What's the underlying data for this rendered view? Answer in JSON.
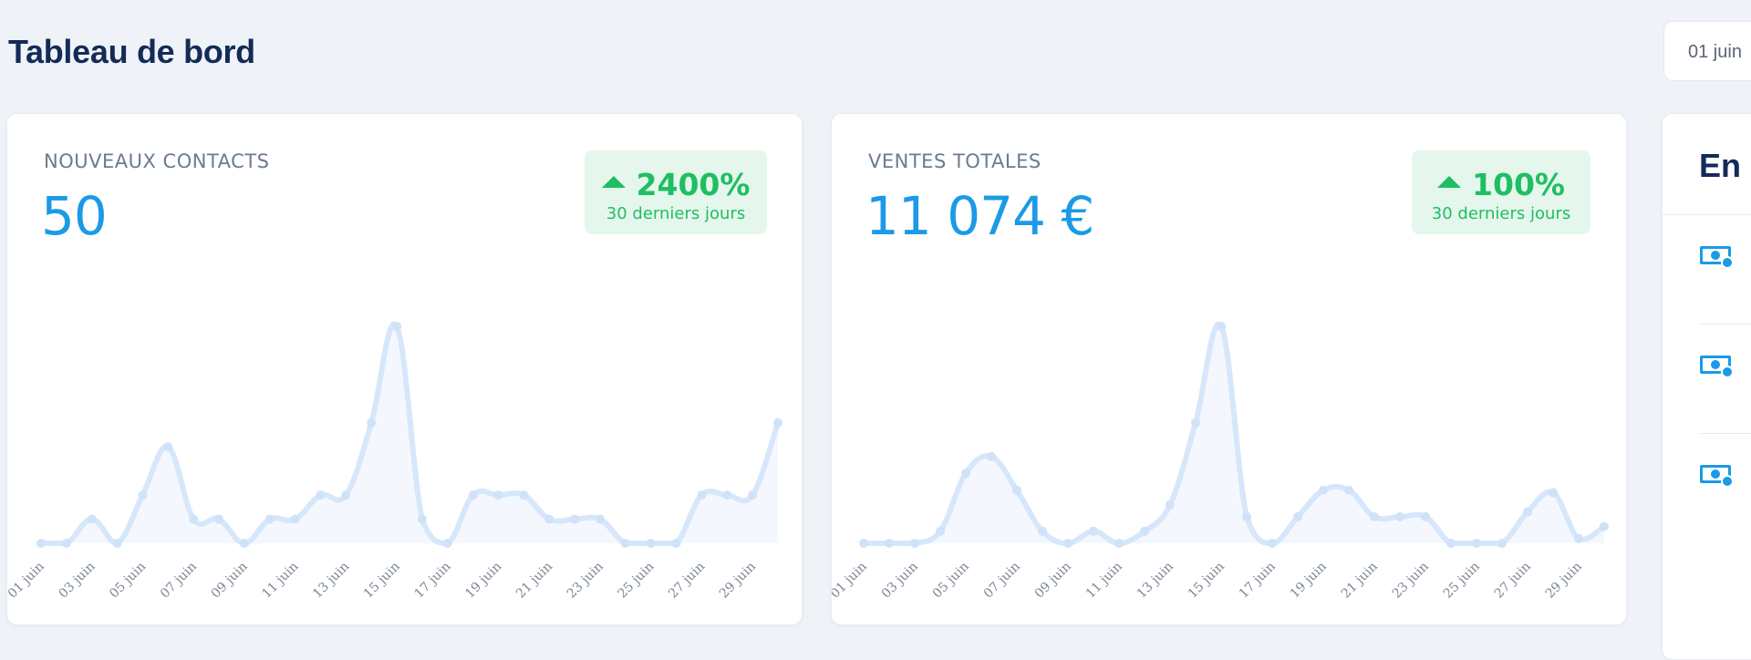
{
  "header": {
    "title": "Tableau de bord",
    "date_range": "01 juin"
  },
  "cards": [
    {
      "label": "NOUVEAUX CONTACTS",
      "value": "50",
      "trend": {
        "value": "2400%",
        "period": "30 derniers jours"
      }
    },
    {
      "label": "VENTES TOTALES",
      "value": "11 074 €",
      "trend": {
        "value": "100%",
        "period": "30 derniers jours"
      }
    }
  ],
  "activity": {
    "title": "En c",
    "items": [
      {
        "icon": "money-icon"
      },
      {
        "icon": "money-icon"
      },
      {
        "icon": "money-icon"
      }
    ]
  },
  "colors": {
    "accent": "#1b9ae6",
    "title": "#142b57",
    "trend_up": "#1fbe62",
    "trend_bg": "#e5f7ec",
    "line": "#d6e7fb",
    "area": "#f4f8fe"
  },
  "chart_data": [
    {
      "type": "area",
      "categories": [
        "01 juin",
        "02 juin",
        "03 juin",
        "04 juin",
        "05 juin",
        "06 juin",
        "07 juin",
        "08 juin",
        "09 juin",
        "10 juin",
        "11 juin",
        "12 juin",
        "13 juin",
        "14 juin",
        "15 juin",
        "16 juin",
        "17 juin",
        "18 juin",
        "19 juin",
        "20 juin",
        "21 juin",
        "22 juin",
        "23 juin",
        "24 juin",
        "25 juin",
        "26 juin",
        "27 juin",
        "28 juin",
        "29 juin",
        "30 juin"
      ],
      "tick_labels": [
        "01 juin",
        "03 juin",
        "05 juin",
        "07 juin",
        "09 juin",
        "11 juin",
        "13 juin",
        "15 juin",
        "17 juin",
        "19 juin",
        "21 juin",
        "23 juin",
        "25 juin",
        "27 juin",
        "29 juin"
      ],
      "values": [
        0,
        0,
        1,
        0,
        2,
        4,
        1,
        1,
        0,
        1,
        1,
        2,
        2,
        5,
        9,
        1,
        0,
        2,
        2,
        2,
        1,
        1,
        1,
        0,
        0,
        0,
        2,
        2,
        2,
        5
      ],
      "ylim": [
        0,
        9
      ],
      "grid": false
    },
    {
      "type": "area",
      "categories": [
        "01 juin",
        "02 juin",
        "03 juin",
        "04 juin",
        "05 juin",
        "06 juin",
        "07 juin",
        "08 juin",
        "09 juin",
        "10 juin",
        "11 juin",
        "12 juin",
        "13 juin",
        "14 juin",
        "15 juin",
        "16 juin",
        "17 juin",
        "18 juin",
        "19 juin",
        "20 juin",
        "21 juin",
        "22 juin",
        "23 juin",
        "24 juin",
        "25 juin",
        "26 juin",
        "27 juin",
        "28 juin",
        "29 juin",
        "30 juin"
      ],
      "tick_labels": [
        "01 juin",
        "03 juin",
        "05 juin",
        "07 juin",
        "09 juin",
        "11 juin",
        "13 juin",
        "15 juin",
        "17 juin",
        "19 juin",
        "21 juin",
        "23 juin",
        "25 juin",
        "27 juin",
        "29 juin"
      ],
      "values": [
        0,
        0,
        0,
        0.5,
        2.9,
        3.6,
        2.2,
        0.5,
        0,
        0.5,
        0,
        0.5,
        1.6,
        5,
        9,
        1.1,
        0,
        1.1,
        2.2,
        2.2,
        1.1,
        1.1,
        1.1,
        0,
        0,
        0,
        1.3,
        2.1,
        0.2,
        0.7
      ],
      "ylim": [
        0,
        9
      ],
      "grid": false
    }
  ]
}
